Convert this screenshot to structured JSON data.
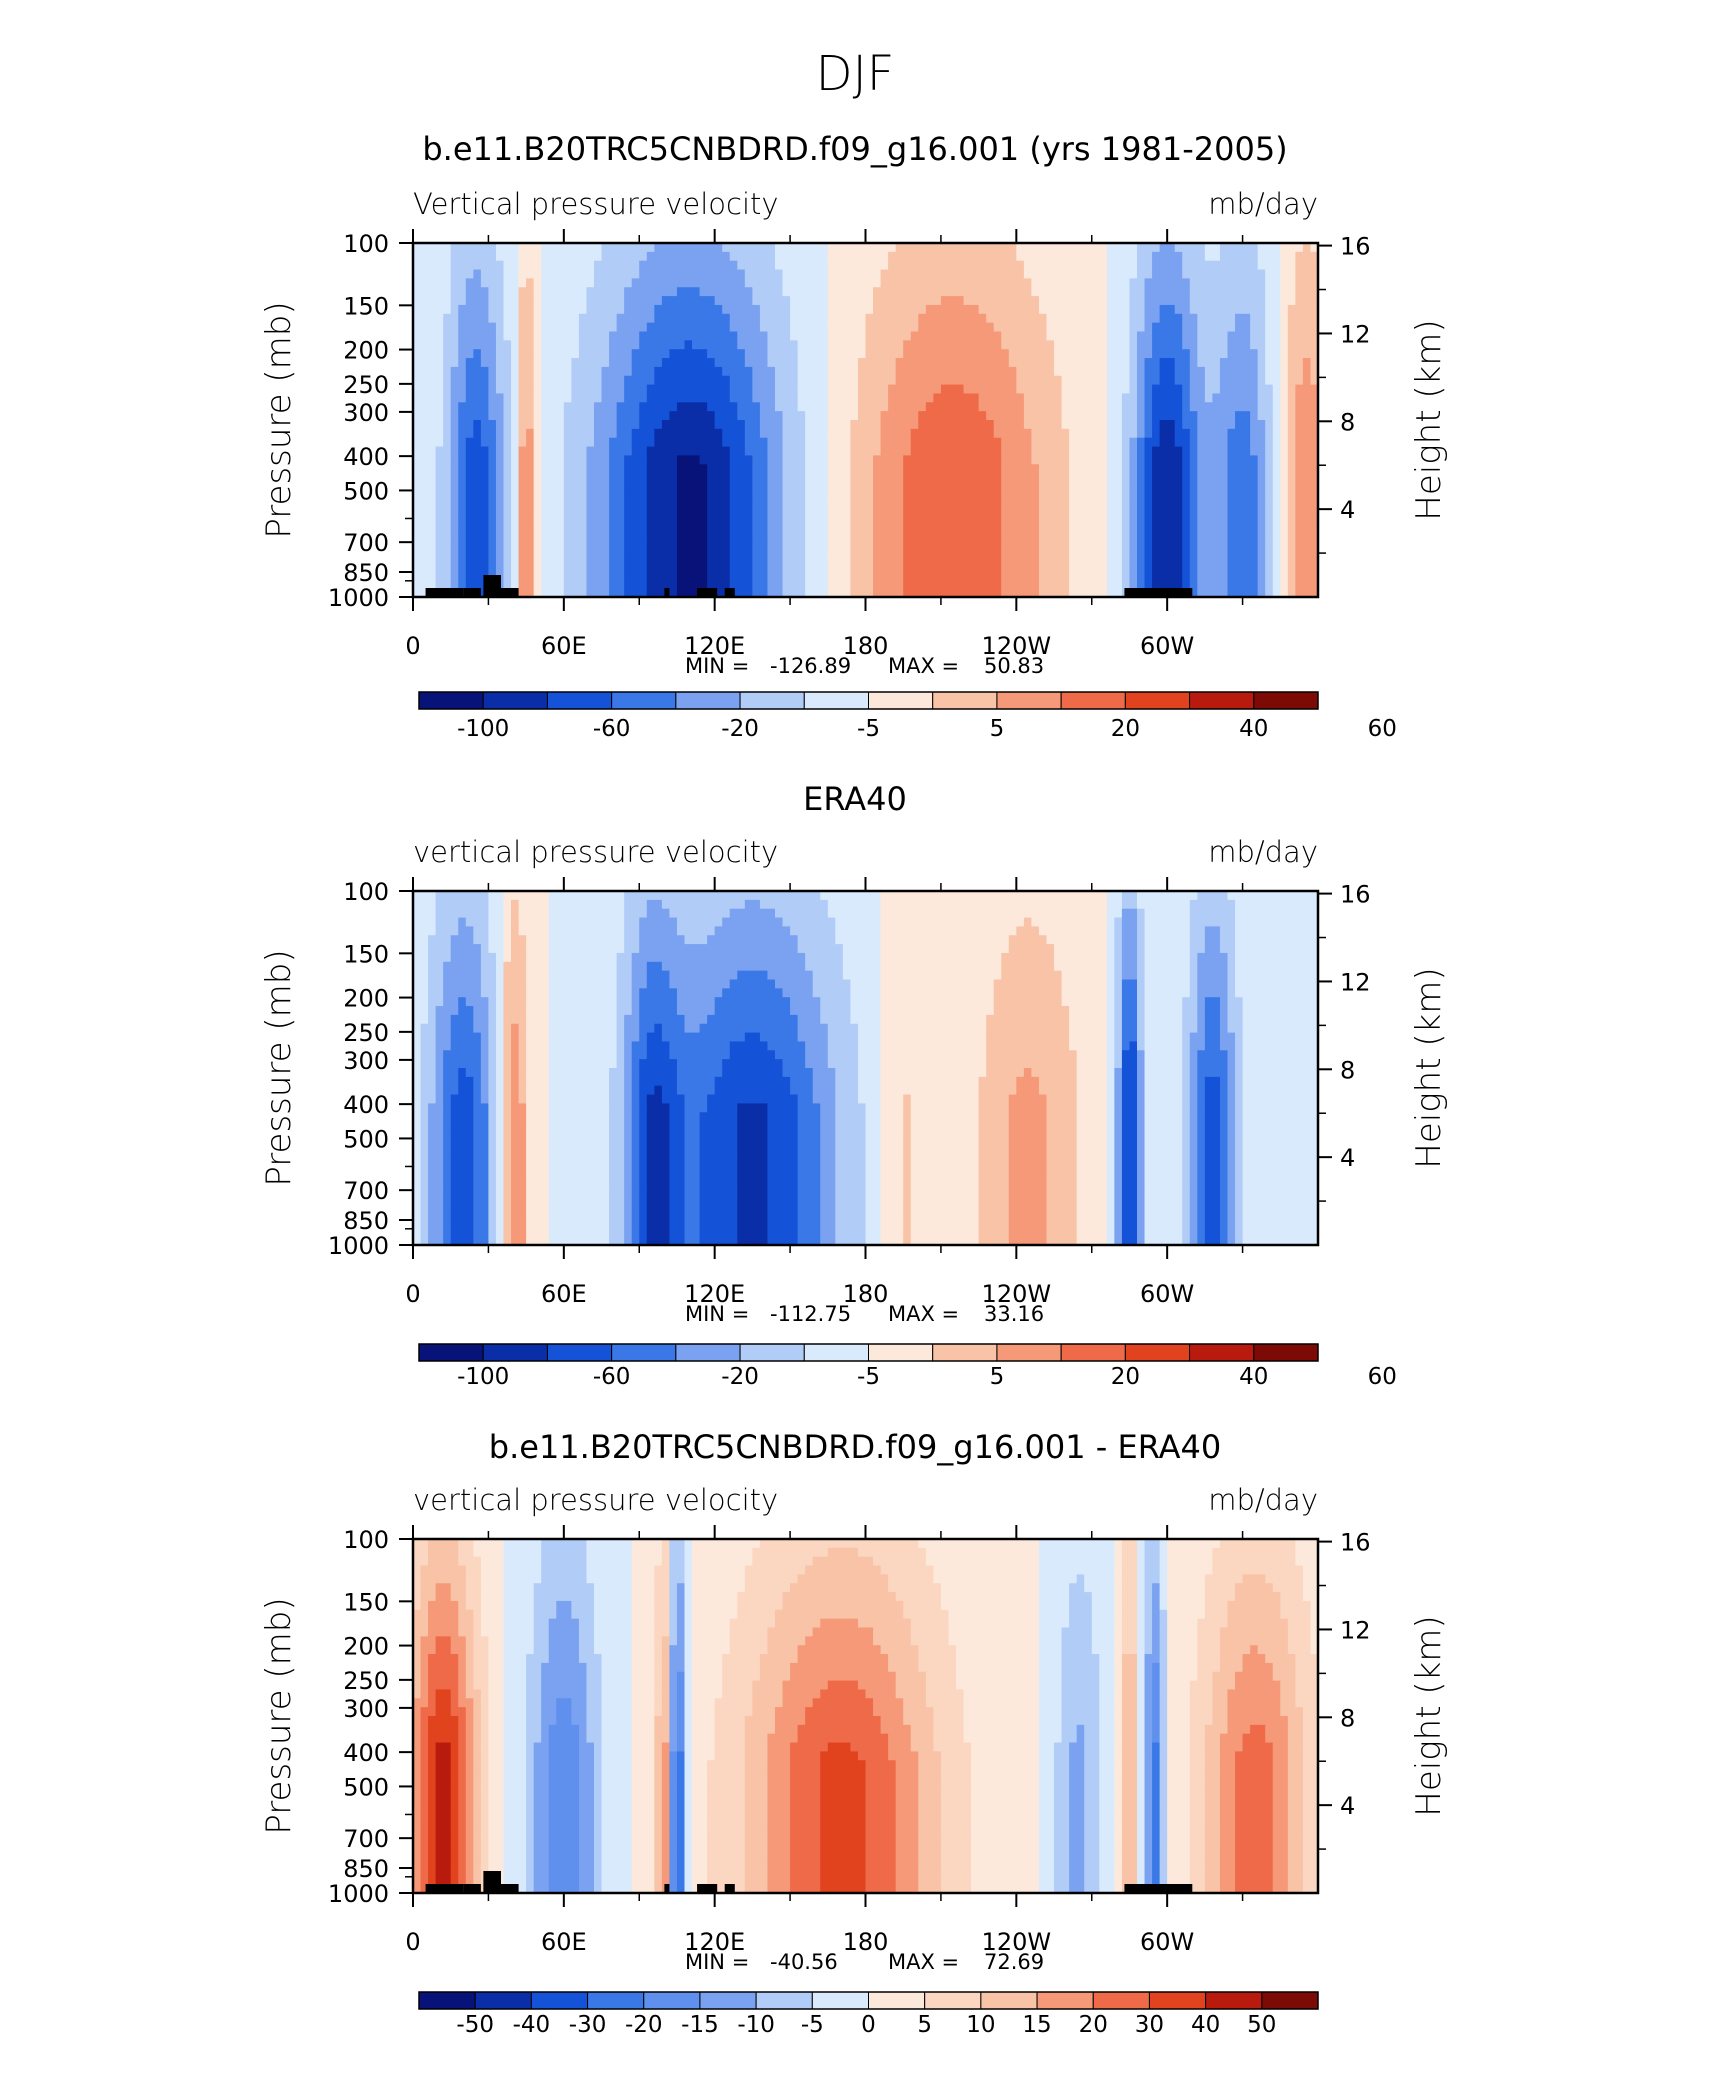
{
  "figure_title": "DJF",
  "colors": {
    "model_obs_scale": [
      "#08137a",
      "#0a2ea8",
      "#1452d8",
      "#3a78e8",
      "#7aa2f0",
      "#b0ccf7",
      "#d9eafc",
      "#fde9dc",
      "#f8c3a6",
      "#f59978",
      "#ee6a48",
      "#e0431d",
      "#b81a0e",
      "#7c0a05"
    ],
    "difference_scale": [
      "#08137a",
      "#0a2ea8",
      "#1452d8",
      "#3a78e8",
      "#5f90ee",
      "#7aa2f0",
      "#b0ccf7",
      "#d9eafc",
      "#fde9dc",
      "#fbd6c0",
      "#f8c3a6",
      "#f59978",
      "#ee6a48",
      "#e0431d",
      "#b81a0e",
      "#7c0a05"
    ],
    "topography": "#000000"
  },
  "chart_data": [
    {
      "type": "heatmap",
      "title": "b.e11.B20TRC5CNBDRD.f09_g16.001 (yrs 1981-2005)",
      "left_label": "Vertical pressure velocity",
      "right_label": "mb/day",
      "ylabel": "Pressure (mb)",
      "y2label": "Height (km)",
      "x_ticks": [
        "0",
        "60E",
        "120E",
        "180",
        "120W",
        "60W"
      ],
      "y_ticks": [
        "100",
        "150",
        "200",
        "250",
        "300",
        "400",
        "500",
        "700",
        "850",
        "1000"
      ],
      "y2_ticks": [
        "16",
        "12",
        "8",
        "4"
      ],
      "stats": {
        "min_label": "MIN =",
        "min": "-126.89",
        "max_label": "MAX =",
        "max": "50.83"
      },
      "levels": [
        "-100",
        "-60",
        "-20",
        "-5",
        "5",
        "20",
        "40",
        "60"
      ],
      "ylim": [
        1000,
        100
      ],
      "xlim": [
        0,
        360
      ]
    },
    {
      "type": "heatmap",
      "title": "ERA40",
      "left_label": "vertical pressure velocity",
      "right_label": "mb/day",
      "ylabel": "Pressure (mb)",
      "y2label": "Height (km)",
      "x_ticks": [
        "0",
        "60E",
        "120E",
        "180",
        "120W",
        "60W"
      ],
      "y_ticks": [
        "100",
        "150",
        "200",
        "250",
        "300",
        "400",
        "500",
        "700",
        "850",
        "1000"
      ],
      "y2_ticks": [
        "16",
        "12",
        "8",
        "4"
      ],
      "stats": {
        "min_label": "MIN =",
        "min": "-112.75",
        "max_label": "MAX =",
        "max": "33.16"
      },
      "levels": [
        "-100",
        "-60",
        "-20",
        "-5",
        "5",
        "20",
        "40",
        "60"
      ],
      "ylim": [
        1000,
        100
      ],
      "xlim": [
        0,
        360
      ]
    },
    {
      "type": "heatmap",
      "title": "b.e11.B20TRC5CNBDRD.f09_g16.001 - ERA40",
      "left_label": "vertical pressure velocity",
      "right_label": "mb/day",
      "ylabel": "Pressure (mb)",
      "y2label": "Height (km)",
      "x_ticks": [
        "0",
        "60E",
        "120E",
        "180",
        "120W",
        "60W"
      ],
      "y_ticks": [
        "100",
        "150",
        "200",
        "250",
        "300",
        "400",
        "500",
        "700",
        "850",
        "1000"
      ],
      "y2_ticks": [
        "16",
        "12",
        "8",
        "4"
      ],
      "stats": {
        "min_label": "MIN =",
        "min": "-40.56",
        "max_label": "MAX =",
        "max": "72.69"
      },
      "levels": [
        "-50",
        "-40",
        "-30",
        "-20",
        "-15",
        "-10",
        "-5",
        "0",
        "5",
        "10",
        "15",
        "20",
        "30",
        "40",
        "50"
      ],
      "ylim": [
        1000,
        100
      ],
      "xlim": [
        0,
        360
      ]
    }
  ]
}
